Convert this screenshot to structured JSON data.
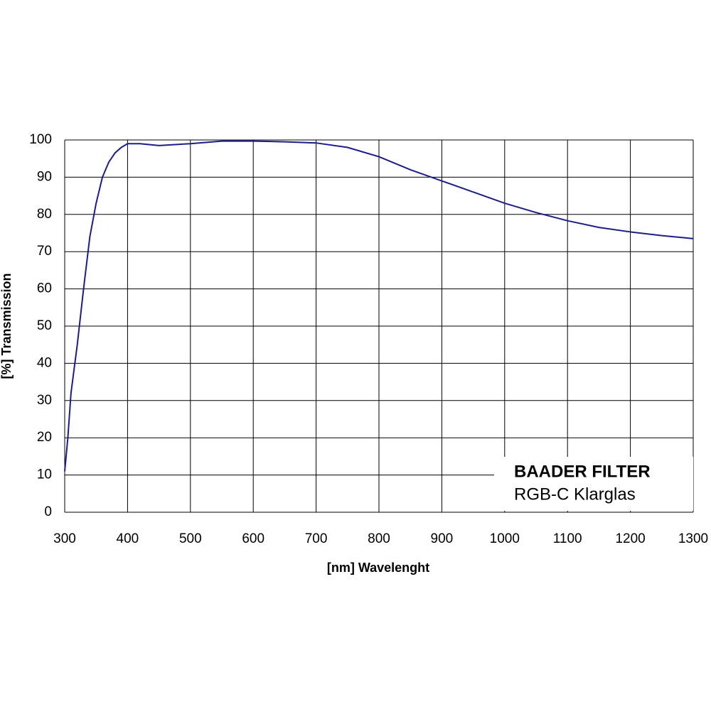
{
  "chart_data": {
    "type": "line",
    "xlabel": "[nm] Wavelenght",
    "ylabel": "[%] Transmission",
    "legend_title": "BAADER FILTER",
    "legend_subtitle": "RGB-C Klarglas",
    "legend_position": "lower right",
    "x": [
      300,
      305,
      310,
      320,
      330,
      340,
      350,
      360,
      370,
      380,
      390,
      400,
      420,
      450,
      500,
      550,
      600,
      650,
      700,
      750,
      800,
      850,
      900,
      950,
      1000,
      1050,
      1100,
      1150,
      1200,
      1250,
      1300
    ],
    "series": [
      {
        "name": "RGB-C Klarglas",
        "color": "#1c1c8a",
        "values": [
          11,
          20,
          32,
          45,
          60,
          74,
          83,
          90,
          94,
          96.5,
          98,
          99,
          99,
          98.5,
          99,
          99.7,
          99.7,
          99.5,
          99.2,
          98,
          95.5,
          92,
          89,
          86,
          83,
          80.5,
          78.3,
          76.5,
          75.3,
          74.3,
          73.5
        ]
      }
    ],
    "xlim": [
      300,
      1300
    ],
    "xticks": [
      300,
      400,
      500,
      600,
      700,
      800,
      900,
      1000,
      1100,
      1200,
      1300
    ],
    "ylim": [
      0,
      100
    ],
    "yticks": [
      0,
      10,
      20,
      30,
      40,
      50,
      60,
      70,
      80,
      90,
      100
    ],
    "grid": true
  }
}
